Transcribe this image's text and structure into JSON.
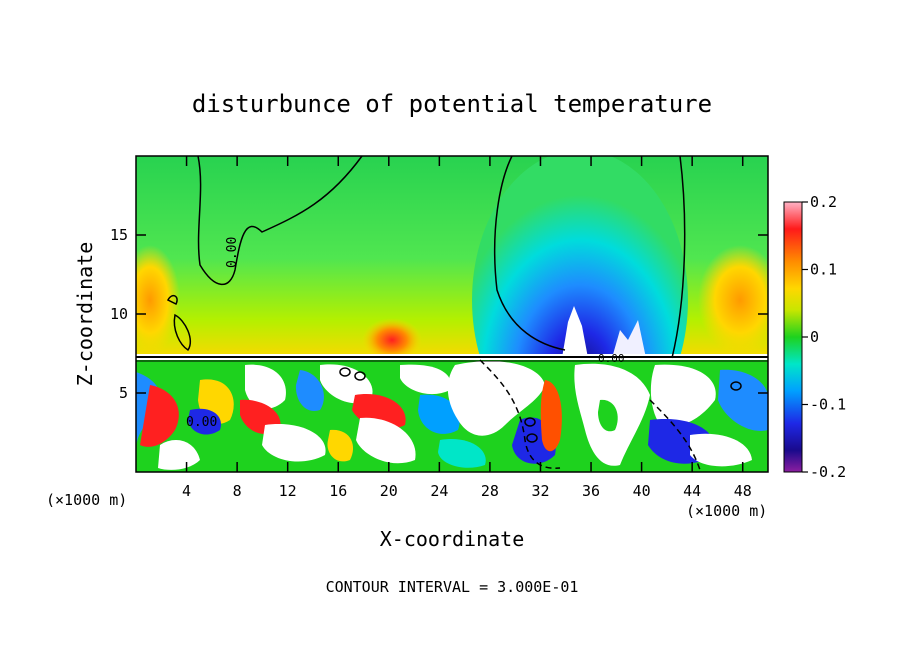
{
  "chart_data": {
    "type": "heatmap",
    "title": "disturbunce of potential temperature",
    "xlabel": "X-coordinate",
    "ylabel": "Z-coordinate",
    "x_unit": "(×1000 m)",
    "z_unit": "(×1000 m)",
    "xlim": [
      0,
      50
    ],
    "ylim": [
      0,
      20
    ],
    "x_ticks": [
      4,
      8,
      12,
      16,
      20,
      24,
      28,
      32,
      36,
      40,
      44,
      48
    ],
    "y_ticks": [
      5,
      10,
      15
    ],
    "colorbar": {
      "range": [
        -0.2,
        0.2
      ],
      "tick_values": [
        0.2,
        0.1,
        0,
        -0.1,
        -0.2
      ],
      "tick_labels": [
        "0.2",
        "0.1",
        "0",
        "-0.1",
        "-0.2"
      ]
    },
    "contour_labels": [
      "0.00",
      "0.00",
      "0.00"
    ],
    "footer": "CONTOUR INTERVAL = 3.000E-01",
    "features": {
      "inversion_height_km": 7.3,
      "cold_anomaly": {
        "x_center_km": 35,
        "z_range_km": [
          7.5,
          19.5
        ],
        "min_value": -0.2
      },
      "warm_patches": [
        {
          "x_center_km": 20,
          "z_km": 8.2,
          "value": 0.12
        },
        {
          "x_center_km": 46.5,
          "z_km": 10.5,
          "value": 0.1
        }
      ]
    }
  }
}
